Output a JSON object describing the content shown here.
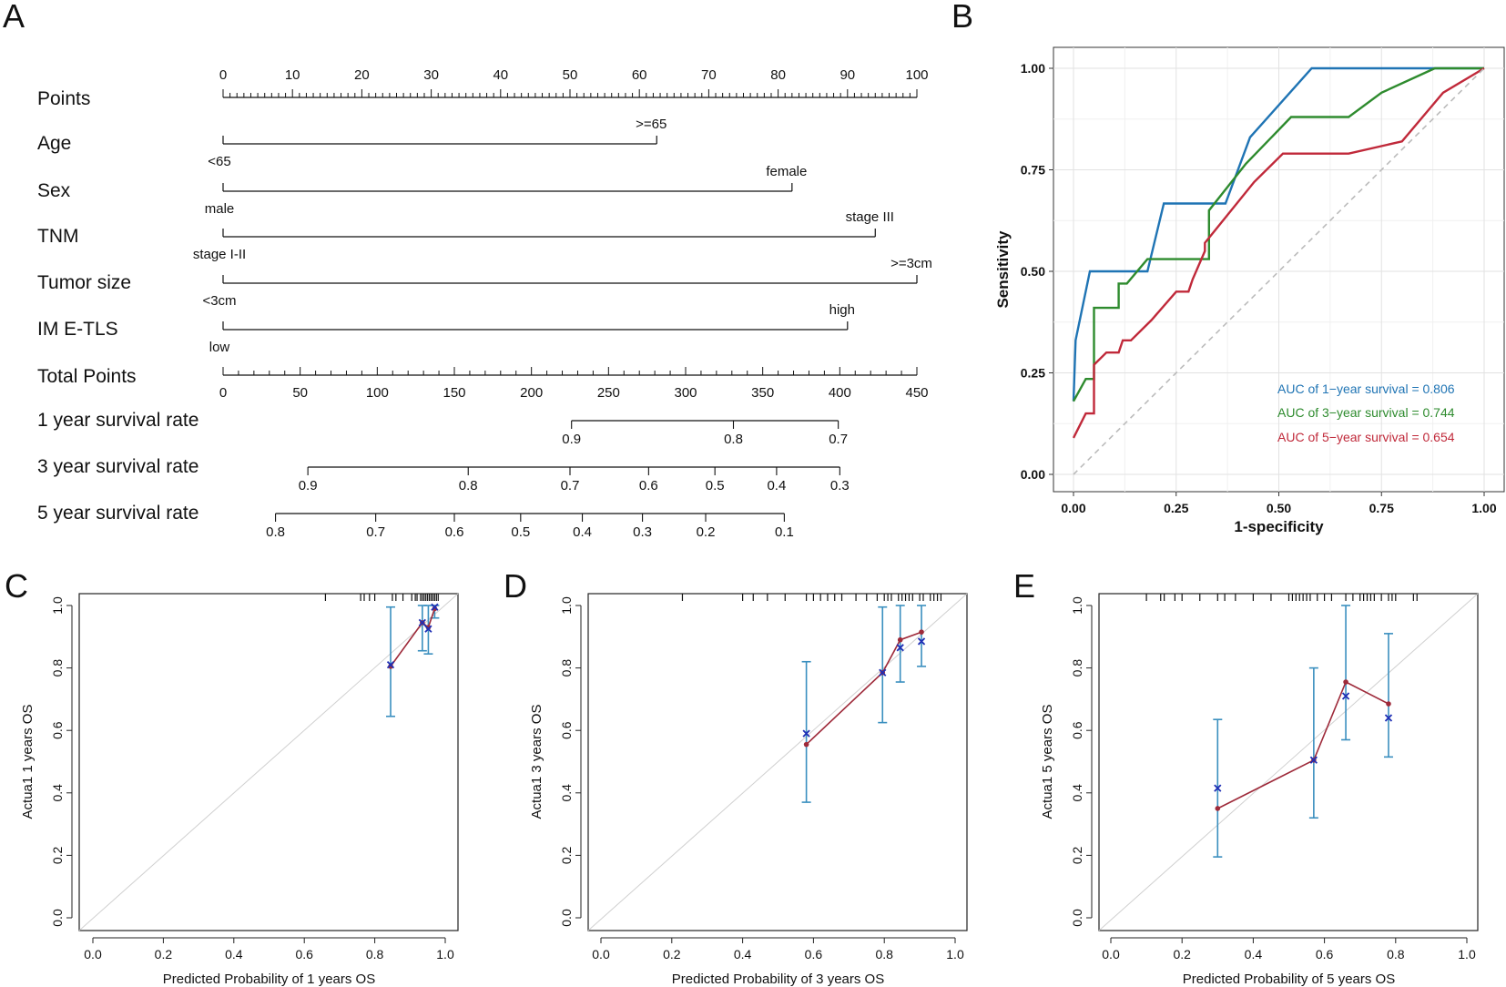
{
  "panels": {
    "A": "A",
    "B": "B",
    "C": "C",
    "D": "D",
    "E": "E"
  },
  "chart_data": [
    {
      "type": "nomogram",
      "panel": "A",
      "points_axis": {
        "label": "Points",
        "min": 0,
        "max": 100,
        "major": [
          0,
          10,
          20,
          30,
          40,
          50,
          60,
          70,
          80,
          90,
          100
        ]
      },
      "variables": [
        {
          "name": "Age",
          "low_label": "<65",
          "low_points": 0,
          "high_label": ">=65",
          "high_points": 62.5
        },
        {
          "name": "Sex",
          "low_label": "male",
          "low_points": 0,
          "high_label": "female",
          "high_points": 82
        },
        {
          "name": "TNM",
          "low_label": "stage I-II",
          "low_points": 0,
          "high_label": "stage III",
          "high_points": 94
        },
        {
          "name": "Tumor size",
          "low_label": "<3cm",
          "low_points": 0,
          "high_label": ">=3cm",
          "high_points": 100
        },
        {
          "name": "IM E-TLS",
          "low_label": "low",
          "low_points": 0,
          "high_label": "high",
          "high_points": 90
        }
      ],
      "total_points_axis": {
        "label": "Total Points",
        "min": 0,
        "max": 450,
        "major": [
          0,
          50,
          100,
          150,
          200,
          250,
          300,
          350,
          400,
          450
        ]
      },
      "survival_scales": [
        {
          "label": "1 year survival rate",
          "ticks": [
            {
              "value": "0.9",
              "total": 226
            },
            {
              "value": "0.8",
              "total": 331
            },
            {
              "value": "0.7",
              "total": 399
            }
          ]
        },
        {
          "label": "3 year survival rate",
          "ticks": [
            {
              "value": "0.9",
              "total": 55
            },
            {
              "value": "0.8",
              "total": 159
            },
            {
              "value": "0.7",
              "total": 225
            },
            {
              "value": "0.6",
              "total": 276
            },
            {
              "value": "0.5",
              "total": 319
            },
            {
              "value": "0.4",
              "total": 359
            },
            {
              "value": "0.3",
              "total": 400
            }
          ]
        },
        {
          "label": "5 year survival rate",
          "ticks": [
            {
              "value": "0.8",
              "total": 34
            },
            {
              "value": "0.7",
              "total": 99
            },
            {
              "value": "0.6",
              "total": 150
            },
            {
              "value": "0.5",
              "total": 193
            },
            {
              "value": "0.4",
              "total": 233
            },
            {
              "value": "0.3",
              "total": 272
            },
            {
              "value": "0.2",
              "total": 313
            },
            {
              "value": "0.1",
              "total": 364
            }
          ]
        }
      ]
    },
    {
      "type": "line",
      "panel": "B",
      "title": "",
      "xlabel": "1-specificity",
      "ylabel": "Sensitivity",
      "xlim": [
        0,
        1
      ],
      "ylim": [
        0,
        1
      ],
      "ticks": [
        0,
        0.25,
        0.5,
        0.75,
        1
      ],
      "tick_labels": [
        "0.00",
        "0.25",
        "0.50",
        "0.75",
        "1.00"
      ],
      "grid": true,
      "legend_position": "bottom-right",
      "series": [
        {
          "name": "AUC of 1−year survival = 0.806",
          "color": "#1f74b4",
          "points": [
            [
              0,
              0.18
            ],
            [
              0.005,
              0.33
            ],
            [
              0.04,
              0.5
            ],
            [
              0.18,
              0.5
            ],
            [
              0.22,
              0.667
            ],
            [
              0.37,
              0.667
            ],
            [
              0.43,
              0.83
            ],
            [
              0.58,
              1.0
            ],
            [
              1.0,
              1.0
            ]
          ]
        },
        {
          "name": "AUC of 3−year survival = 0.744",
          "color": "#2e8b2e",
          "points": [
            [
              0,
              0.18
            ],
            [
              0.03,
              0.235
            ],
            [
              0.05,
              0.235
            ],
            [
              0.05,
              0.41
            ],
            [
              0.11,
              0.41
            ],
            [
              0.11,
              0.47
            ],
            [
              0.13,
              0.47
            ],
            [
              0.18,
              0.53
            ],
            [
              0.33,
              0.53
            ],
            [
              0.33,
              0.65
            ],
            [
              0.42,
              0.765
            ],
            [
              0.53,
              0.88
            ],
            [
              0.67,
              0.88
            ],
            [
              0.75,
              0.94
            ],
            [
              0.88,
              1.0
            ],
            [
              1.0,
              1.0
            ]
          ]
        },
        {
          "name": "AUC of 5−year survival = 0.654",
          "color": "#c0293a",
          "points": [
            [
              0,
              0.09
            ],
            [
              0.03,
              0.15
            ],
            [
              0.05,
              0.15
            ],
            [
              0.05,
              0.27
            ],
            [
              0.08,
              0.3
            ],
            [
              0.11,
              0.3
            ],
            [
              0.12,
              0.33
            ],
            [
              0.14,
              0.33
            ],
            [
              0.19,
              0.38
            ],
            [
              0.25,
              0.45
            ],
            [
              0.28,
              0.45
            ],
            [
              0.29,
              0.48
            ],
            [
              0.32,
              0.55
            ],
            [
              0.32,
              0.57
            ],
            [
              0.44,
              0.72
            ],
            [
              0.51,
              0.79
            ],
            [
              0.67,
              0.79
            ],
            [
              0.8,
              0.82
            ],
            [
              0.9,
              0.94
            ],
            [
              1.0,
              1.0
            ]
          ]
        },
        {
          "name": "reference",
          "color": "#bbbbbb",
          "dashed": true,
          "points": [
            [
              0,
              0
            ],
            [
              1,
              1
            ]
          ]
        }
      ]
    },
    {
      "type": "scatter",
      "panel": "C",
      "xlabel": "Predicted Probability of 1 years OS",
      "ylabel": "Actua1 1 years OS",
      "xlim": [
        0,
        1
      ],
      "ylim": [
        0,
        1
      ],
      "ticks": [
        0,
        0.2,
        0.4,
        0.6,
        0.8,
        1
      ],
      "tick_labels": [
        "0.0",
        "0.2",
        "0.4",
        "0.6",
        "0.8",
        "1.0"
      ],
      "points": [
        {
          "x": 0.845,
          "observed": 0.805,
          "corrected": 0.81,
          "lower": 0.645,
          "upper": 0.995
        },
        {
          "x": 0.935,
          "observed": 0.945,
          "corrected": 0.945,
          "lower": 0.855,
          "upper": 1.0
        },
        {
          "x": 0.952,
          "observed": 0.93,
          "corrected": 0.925,
          "lower": 0.845,
          "upper": 1.0
        },
        {
          "x": 0.97,
          "observed": 0.99,
          "corrected": 0.995,
          "lower": 0.96,
          "upper": 1.0
        }
      ],
      "rug": [
        0.66,
        0.76,
        0.77,
        0.785,
        0.8,
        0.85,
        0.86,
        0.88,
        0.905,
        0.915,
        0.92,
        0.93,
        0.935,
        0.94,
        0.945,
        0.95,
        0.955,
        0.96,
        0.965,
        0.97,
        0.975,
        0.98
      ]
    },
    {
      "type": "scatter",
      "panel": "D",
      "xlabel": "Predicted Probability of 3 years OS",
      "ylabel": "Actua1 3 years OS",
      "xlim": [
        0,
        1
      ],
      "ylim": [
        0,
        1
      ],
      "ticks": [
        0,
        0.2,
        0.4,
        0.6,
        0.8,
        1
      ],
      "tick_labels": [
        "0.0",
        "0.2",
        "0.4",
        "0.6",
        "0.8",
        "1.0"
      ],
      "points": [
        {
          "x": 0.58,
          "observed": 0.555,
          "corrected": 0.59,
          "lower": 0.37,
          "upper": 0.82
        },
        {
          "x": 0.795,
          "observed": 0.785,
          "corrected": 0.785,
          "lower": 0.625,
          "upper": 0.995
        },
        {
          "x": 0.845,
          "observed": 0.89,
          "corrected": 0.865,
          "lower": 0.755,
          "upper": 1.0
        },
        {
          "x": 0.905,
          "observed": 0.915,
          "corrected": 0.885,
          "lower": 0.805,
          "upper": 1.0
        }
      ],
      "rug": [
        0.23,
        0.4,
        0.43,
        0.47,
        0.52,
        0.58,
        0.6,
        0.62,
        0.64,
        0.66,
        0.68,
        0.72,
        0.75,
        0.78,
        0.8,
        0.81,
        0.82,
        0.84,
        0.85,
        0.86,
        0.87,
        0.88,
        0.9,
        0.91,
        0.93,
        0.94,
        0.95,
        0.96
      ]
    },
    {
      "type": "scatter",
      "panel": "E",
      "xlabel": "Predicted Probability of 5 years OS",
      "ylabel": "Actua1 5 years OS",
      "xlim": [
        0,
        1
      ],
      "ylim": [
        0,
        1
      ],
      "ticks": [
        0,
        0.2,
        0.4,
        0.6,
        0.8,
        1
      ],
      "tick_labels": [
        "0.0",
        "0.2",
        "0.4",
        "0.6",
        "0.8",
        "1.0"
      ],
      "points": [
        {
          "x": 0.3,
          "observed": 0.35,
          "corrected": 0.415,
          "lower": 0.195,
          "upper": 0.635
        },
        {
          "x": 0.57,
          "observed": 0.505,
          "corrected": 0.505,
          "lower": 0.32,
          "upper": 0.8
        },
        {
          "x": 0.66,
          "observed": 0.755,
          "corrected": 0.71,
          "lower": 0.57,
          "upper": 1.0
        },
        {
          "x": 0.78,
          "observed": 0.685,
          "corrected": 0.64,
          "lower": 0.515,
          "upper": 0.91
        }
      ],
      "rug": [
        0.1,
        0.14,
        0.15,
        0.18,
        0.2,
        0.25,
        0.3,
        0.32,
        0.35,
        0.4,
        0.45,
        0.5,
        0.51,
        0.52,
        0.53,
        0.54,
        0.55,
        0.56,
        0.58,
        0.6,
        0.62,
        0.66,
        0.68,
        0.7,
        0.71,
        0.72,
        0.73,
        0.74,
        0.76,
        0.78,
        0.79,
        0.8,
        0.85,
        0.86
      ]
    }
  ]
}
